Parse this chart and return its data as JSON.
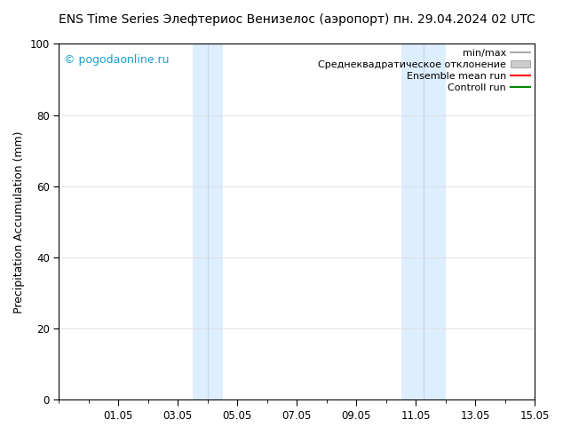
{
  "title_left": "ENS Time Series Элефтериос Венизелос (аэропорт)",
  "title_right": "пн. 29.04.2024 02 UTC",
  "ylabel": "Precipitation Accumulation (mm)",
  "ylim": [
    0,
    100
  ],
  "xlim": [
    0,
    16
  ],
  "xtick_labels": [
    "01.05",
    "03.05",
    "05.05",
    "07.05",
    "09.05",
    "11.05",
    "13.05",
    "15.05"
  ],
  "xtick_positions": [
    2,
    4,
    6,
    8,
    10,
    12,
    14,
    16
  ],
  "ytick_positions": [
    0,
    20,
    40,
    60,
    80,
    100
  ],
  "shaded_bands": [
    {
      "x_start": 4.5,
      "x_end": 5.5,
      "divider": 5.0
    },
    {
      "x_start": 11.5,
      "x_end": 13.0,
      "divider": 12.25
    }
  ],
  "band_color": "#ddeeff",
  "band_divider_color": "#c0d8ee",
  "watermark": "© pogodaonline.ru",
  "watermark_color": "#1a9ecc",
  "legend_items": [
    {
      "label": "min/max",
      "type": "line",
      "color": "#aaaaaa",
      "lw": 1.5
    },
    {
      "label": "Среднеквадратическое отклонение",
      "type": "patch",
      "color": "#cccccc",
      "lw": 1
    },
    {
      "label": "Ensemble mean run",
      "type": "line",
      "color": "#ff0000",
      "lw": 1.5
    },
    {
      "label": "Controll run",
      "type": "line",
      "color": "#008800",
      "lw": 1.5
    }
  ],
  "bg_color": "#ffffff",
  "plot_bg_color": "#ffffff",
  "grid_color": "#dddddd",
  "title_fontsize": 10,
  "legend_fontsize": 8,
  "ylabel_fontsize": 9,
  "tick_fontsize": 8.5,
  "watermark_fontsize": 9
}
